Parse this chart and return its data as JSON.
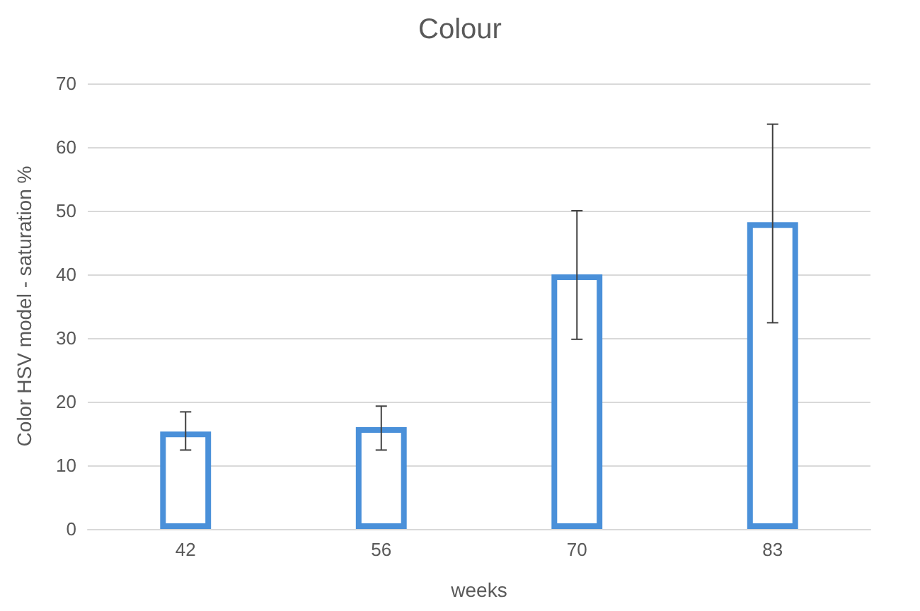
{
  "chart_data": {
    "type": "bar",
    "title": "Colour",
    "xlabel": "weeks",
    "ylabel": "Color HSV model - saturation %",
    "categories": [
      "42",
      "56",
      "70",
      "83"
    ],
    "values": [
      15.3,
      16,
      40,
      48.2
    ],
    "errors": [
      [
        12.4,
        18.4
      ],
      [
        12.4,
        19.3
      ],
      [
        29.8,
        50
      ],
      [
        32.4,
        63.6
      ]
    ],
    "color": "#4a90d9",
    "ylim": [
      0,
      70
    ],
    "yticks": [
      0,
      10,
      20,
      30,
      40,
      50,
      60,
      70
    ],
    "grid": "y"
  }
}
